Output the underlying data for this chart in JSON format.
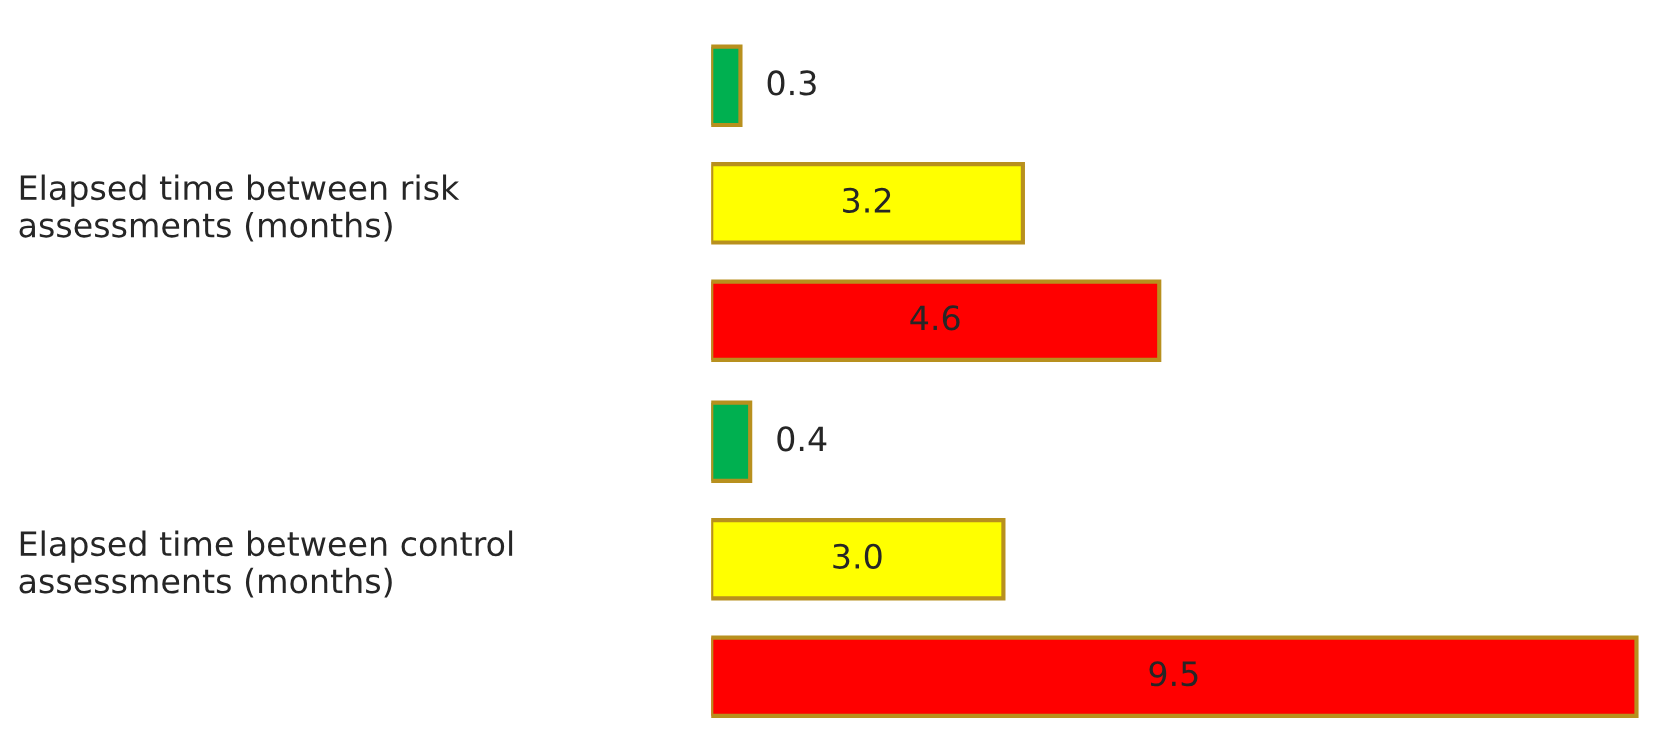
{
  "chart_data": {
    "type": "bar",
    "orientation": "horizontal",
    "categories": [
      "Elapsed time between risk\nassessments (months)",
      "Elapsed time between control\nassessments (months)"
    ],
    "series": [
      {
        "color": "#00b050",
        "values": [
          0.3,
          0.4
        ],
        "value_labels": [
          "0.3",
          "0.4"
        ]
      },
      {
        "color": "#ffff00",
        "values": [
          3.2,
          3.0
        ],
        "value_labels": [
          "3.2",
          "3.0"
        ]
      },
      {
        "color": "#ff0000",
        "values": [
          4.6,
          9.5
        ],
        "value_labels": [
          "4.6",
          "9.5"
        ]
      }
    ],
    "grid": false,
    "legend": false
  }
}
